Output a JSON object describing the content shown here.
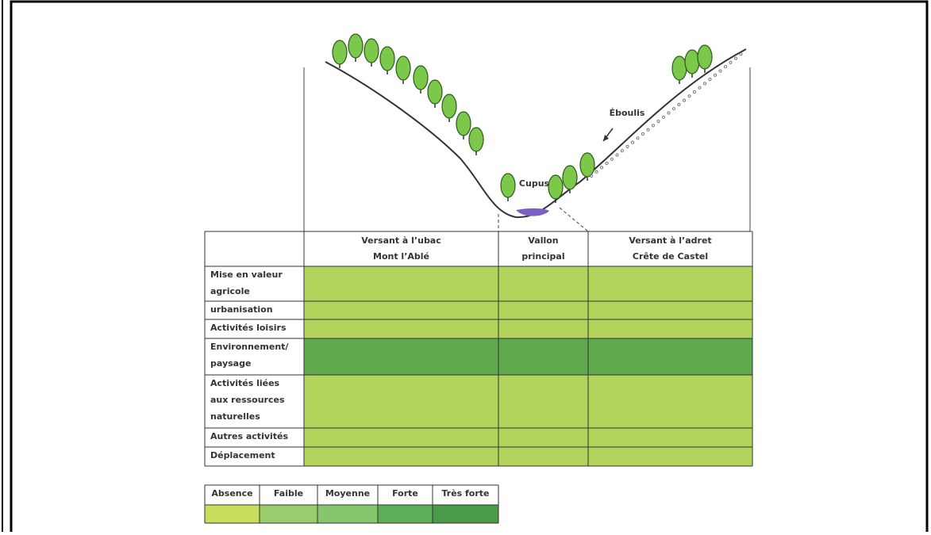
{
  "illustration": {
    "labels": [
      "Éboulis",
      "Cupus"
    ]
  },
  "table": {
    "header": [
      [
        "Versant à l’ubac",
        "Mont l’Ablé"
      ],
      [
        "Vallon",
        "principal"
      ],
      [
        "Versant à l’adret",
        "Crête de Castel"
      ]
    ],
    "rows": [
      {
        "label": [
          "Mise en valeur",
          "agricole"
        ],
        "color": "#b2d45c"
      },
      {
        "label": [
          "urbanisation"
        ],
        "color": "#b2d45c"
      },
      {
        "label": [
          "Activités loisirs"
        ],
        "color": "#b2d45c"
      },
      {
        "label": [
          "Environnement/",
          "paysage"
        ],
        "color": "#5eaa4c"
      },
      {
        "label": [
          "Activités liées",
          "aux ressources",
          "naturelles"
        ],
        "color": "#b2d45c"
      },
      {
        "label": [
          "Autres activités"
        ],
        "color": "#b2d45c"
      },
      {
        "label": [
          "Déplacement"
        ],
        "color": "#b2d45c"
      }
    ]
  },
  "legend": [
    {
      "label": "Absence",
      "color": "#c8de5c"
    },
    {
      "label": "Faible",
      "color": "#98cc6c"
    },
    {
      "label": "Moyenne",
      "color": "#86c66c"
    },
    {
      "label": "Forte",
      "color": "#5eae58"
    },
    {
      "label": "Très forte",
      "color": "#4a9a4a"
    }
  ]
}
